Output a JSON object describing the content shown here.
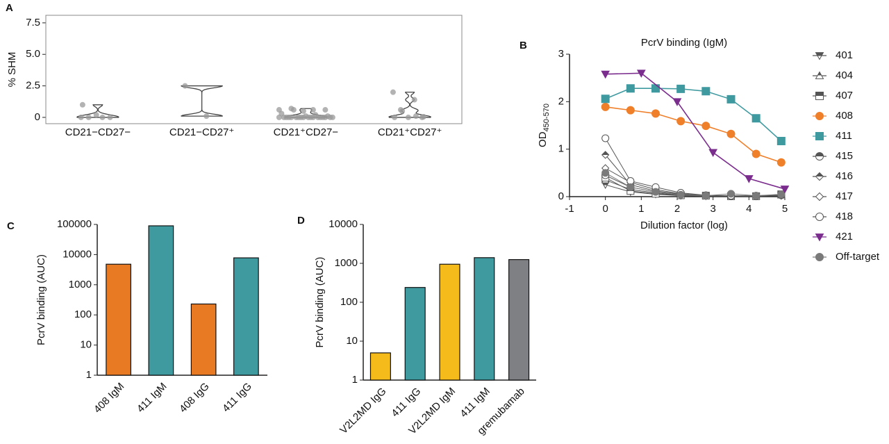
{
  "chart_data": [
    {
      "type": "violin",
      "panel_label": "A",
      "ylabel": "% SHM",
      "categories": [
        "CD21−CD27−",
        "CD21−CD27⁺",
        "CD21⁺CD27−",
        "CD21⁺CD27⁺"
      ],
      "values": [
        [
          0,
          0,
          0,
          0,
          0.2,
          1.0
        ],
        [
          2.5,
          0.1
        ],
        [
          0.6,
          0.6,
          0.7,
          0.6,
          0.5,
          0.3,
          0.2,
          0.6,
          0.1,
          0.1,
          0,
          0,
          0,
          0,
          0,
          0,
          0,
          0,
          0,
          0,
          0,
          0,
          0,
          0,
          0,
          0,
          0,
          0
        ],
        [
          2.0,
          1.4,
          0.6,
          0,
          0,
          0,
          0.1,
          0.5,
          0.05
        ]
      ],
      "color": "#9a9a9a",
      "ylim": [
        -0.5,
        8.1
      ],
      "yticks": [
        0,
        2.5,
        {
          "value": 5,
          "label": "5.0"
        },
        7.5
      ]
    },
    {
      "type": "line",
      "panel_label": "B",
      "title": "PcrV binding (IgM)",
      "xlabel": "Dilution factor (log)",
      "ylabel": "OD",
      "ylabel_sub": "450-570",
      "xlim": [
        -1,
        5
      ],
      "xticks": [
        -1,
        0,
        1,
        2,
        3,
        4,
        5
      ],
      "ylim": [
        0,
        3
      ],
      "yticks": [
        0,
        1,
        2,
        3
      ],
      "series": [
        {
          "name": "401",
          "color": "#555555",
          "marker": "triangle-down",
          "fill": "half",
          "x": [
            0,
            0.7,
            1.4,
            2.1,
            2.8,
            3.5,
            4.2,
            4.9
          ],
          "values": [
            0.25,
            0.1,
            0.05,
            0.02,
            0.01,
            0.01,
            0.01,
            0.02
          ]
        },
        {
          "name": "404",
          "color": "#555555",
          "marker": "triangle-up",
          "fill": "half",
          "x": [
            0,
            0.7,
            1.4,
            2.1,
            2.8,
            3.5,
            4.2,
            4.9
          ],
          "values": [
            0.35,
            0.15,
            0.08,
            0.03,
            0.02,
            0.01,
            0.01,
            0.03
          ]
        },
        {
          "name": "407",
          "color": "#555555",
          "marker": "square",
          "fill": "half",
          "x": [
            0,
            0.7,
            1.4,
            2.1,
            2.8,
            3.5,
            4.2,
            4.9
          ],
          "values": [
            0.4,
            0.12,
            0.06,
            0.03,
            0.02,
            0.01,
            0.01,
            0.05
          ]
        },
        {
          "name": "408",
          "color": "#f07f2a",
          "marker": "circle",
          "fill": "filled",
          "x": [
            0,
            0.7,
            1.4,
            2.1,
            2.8,
            3.5,
            4.2,
            4.9
          ],
          "values": [
            1.89,
            1.82,
            1.75,
            1.59,
            1.49,
            1.32,
            0.9,
            0.72
          ]
        },
        {
          "name": "411",
          "color": "#3f9aa0",
          "marker": "square",
          "fill": "filled",
          "x": [
            0,
            0.7,
            1.4,
            2.1,
            2.8,
            3.5,
            4.2,
            4.9
          ],
          "values": [
            2.06,
            2.28,
            2.28,
            2.27,
            2.22,
            2.05,
            1.65,
            1.17
          ]
        },
        {
          "name": "415",
          "color": "#555555",
          "marker": "circle",
          "fill": "half",
          "x": [
            0,
            0.7,
            1.4,
            2.1,
            2.8,
            3.5,
            4.2,
            4.9
          ],
          "values": [
            0.45,
            0.2,
            0.1,
            0.04,
            0.02,
            0.01,
            0.01,
            0.03
          ]
        },
        {
          "name": "416",
          "color": "#555555",
          "marker": "diamond",
          "fill": "half",
          "x": [
            0,
            0.7,
            1.4,
            2.1,
            2.8,
            3.5,
            4.2,
            4.9
          ],
          "values": [
            0.88,
            0.25,
            0.12,
            0.05,
            0.02,
            0.01,
            0.01,
            0.03
          ]
        },
        {
          "name": "417",
          "color": "#555555",
          "marker": "diamond",
          "fill": "open",
          "x": [
            0,
            0.7,
            1.4,
            2.1,
            2.8,
            3.5,
            4.2,
            4.9
          ],
          "values": [
            0.6,
            0.3,
            0.15,
            0.06,
            0.03,
            0.01,
            0.01,
            0.02
          ]
        },
        {
          "name": "418",
          "color": "#555555",
          "marker": "circle",
          "fill": "open",
          "x": [
            0,
            0.7,
            1.4,
            2.1,
            2.8,
            3.5,
            4.2,
            4.9
          ],
          "values": [
            1.23,
            0.33,
            0.2,
            0.08,
            0.03,
            0.02,
            0.02,
            0.04
          ]
        },
        {
          "name": "421",
          "color": "#7b2d8e",
          "marker": "triangle-down",
          "fill": "filled",
          "x": [
            0,
            1,
            2,
            3,
            4,
            5
          ],
          "values": [
            2.58,
            2.6,
            2.0,
            0.93,
            0.38,
            0.16
          ]
        },
        {
          "name": "Off-target",
          "color": "#7a7a7a",
          "marker": "circle",
          "fill": "filled",
          "x": [
            0,
            0.7,
            1.4,
            2.1,
            2.8,
            3.5,
            4.2,
            4.9
          ],
          "values": [
            0.5,
            0.2,
            0.1,
            0.04,
            0.02,
            0.06,
            0.02,
            0.05
          ]
        }
      ]
    },
    {
      "type": "bar",
      "panel_label": "C",
      "ylabel": "PcrV binding (AUC)",
      "log": true,
      "categories": [
        "408 IgM",
        "411 IgM",
        "408 IgG",
        "411 IgG"
      ],
      "values": [
        4800,
        90000,
        230,
        7800
      ],
      "colors": [
        "#e87a24",
        "#3f9aa0",
        "#e87a24",
        "#3f9aa0"
      ],
      "ylim": [
        1,
        100000
      ],
      "yticks": [
        1,
        10,
        100,
        1000,
        10000,
        100000
      ]
    },
    {
      "type": "bar",
      "panel_label": "D",
      "ylabel": "PcrV binding (AUC)",
      "log": true,
      "categories": [
        "V2L2MD IgG",
        "411 IgG",
        "V2L2MD IgM",
        "411 IgM",
        "gremubamab"
      ],
      "values": [
        5,
        240,
        950,
        1400,
        1250
      ],
      "colors": [
        "#f5bb1a",
        "#3f9aa0",
        "#f5bb1a",
        "#3f9aa0",
        "#7f8083"
      ],
      "ylim": [
        1,
        10000
      ],
      "yticks": [
        1,
        10,
        100,
        1000,
        10000
      ]
    }
  ]
}
